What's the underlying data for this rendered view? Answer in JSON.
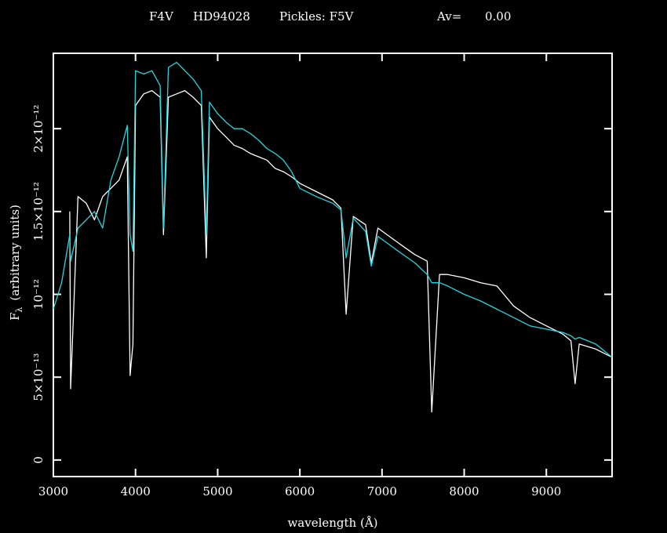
{
  "chart_data": {
    "type": "line",
    "title": [
      "F4V",
      "HD94028",
      "Pickles: F5V",
      "Av=",
      "0.00"
    ],
    "x_label": "wavelength (Å)",
    "y_label": {
      "symbol": "F",
      "subscript": "λ",
      "text": "(arbitrary units)"
    },
    "x": [
      3000,
      3100,
      3200,
      3210,
      3300,
      3400,
      3500,
      3600,
      3700,
      3800,
      3900,
      3934,
      3968,
      4000,
      4100,
      4200,
      4300,
      4340,
      4400,
      4500,
      4600,
      4700,
      4800,
      4861,
      4900,
      5000,
      5100,
      5200,
      5300,
      5400,
      5500,
      5600,
      5700,
      5800,
      5900,
      6000,
      6200,
      6400,
      6500,
      6563,
      6650,
      6800,
      6870,
      6950,
      7200,
      7400,
      7550,
      7605,
      7700,
      7800,
      8000,
      8200,
      8400,
      8600,
      8800,
      9000,
      9200,
      9300,
      9350,
      9400,
      9600,
      9800
    ],
    "series": [
      {
        "color": "#ffffff",
        "values": [
          null,
          null,
          1.5e-12,
          4.3e-13,
          1.59e-12,
          1.55e-12,
          1.45e-12,
          1.59e-12,
          1.64e-12,
          1.69e-12,
          1.83e-12,
          5.1e-13,
          7e-13,
          2.14e-12,
          2.21e-12,
          2.23e-12,
          2.19e-12,
          1.36e-12,
          2.19e-12,
          2.21e-12,
          2.23e-12,
          2.19e-12,
          2.14e-12,
          1.22e-12,
          2.07e-12,
          2e-12,
          1.95e-12,
          1.9e-12,
          1.88e-12,
          1.85e-12,
          1.83e-12,
          1.81e-12,
          1.76e-12,
          1.74e-12,
          1.71e-12,
          1.67e-12,
          1.62e-12,
          1.57e-12,
          1.52e-12,
          8.8e-13,
          1.47e-12,
          1.42e-12,
          1.19e-12,
          1.4e-12,
          1.31e-12,
          1.24e-12,
          1.2e-12,
          2.9e-13,
          1.12e-12,
          1.12e-12,
          1.1e-12,
          1.07e-12,
          1.05e-12,
          9.3e-13,
          8.6e-13,
          8.1e-13,
          7.6e-13,
          7.2e-13,
          4.6e-13,
          7e-13,
          6.7e-13,
          6.2e-13
        ]
      },
      {
        "color": "#22d8e0",
        "values": [
          9.1e-13,
          1.07e-12,
          1.36e-12,
          1.2e-12,
          1.4e-12,
          1.45e-12,
          1.5e-12,
          1.4e-12,
          1.69e-12,
          1.83e-12,
          2.02e-12,
          1.36e-12,
          1.26e-12,
          2.35e-12,
          2.33e-12,
          2.35e-12,
          2.26e-12,
          1.4e-12,
          2.37e-12,
          2.4e-12,
          2.35e-12,
          2.3e-12,
          2.23e-12,
          1.36e-12,
          2.16e-12,
          2.09e-12,
          2.04e-12,
          2e-12,
          2e-12,
          1.97e-12,
          1.93e-12,
          1.88e-12,
          1.85e-12,
          1.81e-12,
          1.74e-12,
          1.64e-12,
          1.59e-12,
          1.55e-12,
          1.51e-12,
          1.22e-12,
          1.46e-12,
          1.38e-12,
          1.17e-12,
          1.35e-12,
          1.26e-12,
          1.19e-12,
          1.12e-12,
          1.07e-12,
          1.07e-12,
          1.05e-12,
          1e-12,
          9.6e-13,
          9.1e-13,
          8.6e-13,
          8.1e-13,
          7.9e-13,
          7.7e-13,
          7.5e-13,
          7.3e-13,
          7.4e-13,
          7e-13,
          6.2e-13
        ]
      }
    ],
    "xlim": [
      3000,
      9800
    ],
    "xticks": [
      3000,
      4000,
      5000,
      6000,
      7000,
      8000,
      9000
    ],
    "ylim": [
      -1e-13,
      2.455e-12
    ],
    "yticks": [
      0,
      {
        "value": 5e-13,
        "label": "5×10⁻¹³"
      },
      {
        "value": 1e-12,
        "label": "10⁻¹²"
      },
      {
        "value": 1.5e-12,
        "label": "1.5×10⁻¹²"
      },
      {
        "value": 2e-12,
        "label": "2×10⁻¹²"
      }
    ]
  }
}
